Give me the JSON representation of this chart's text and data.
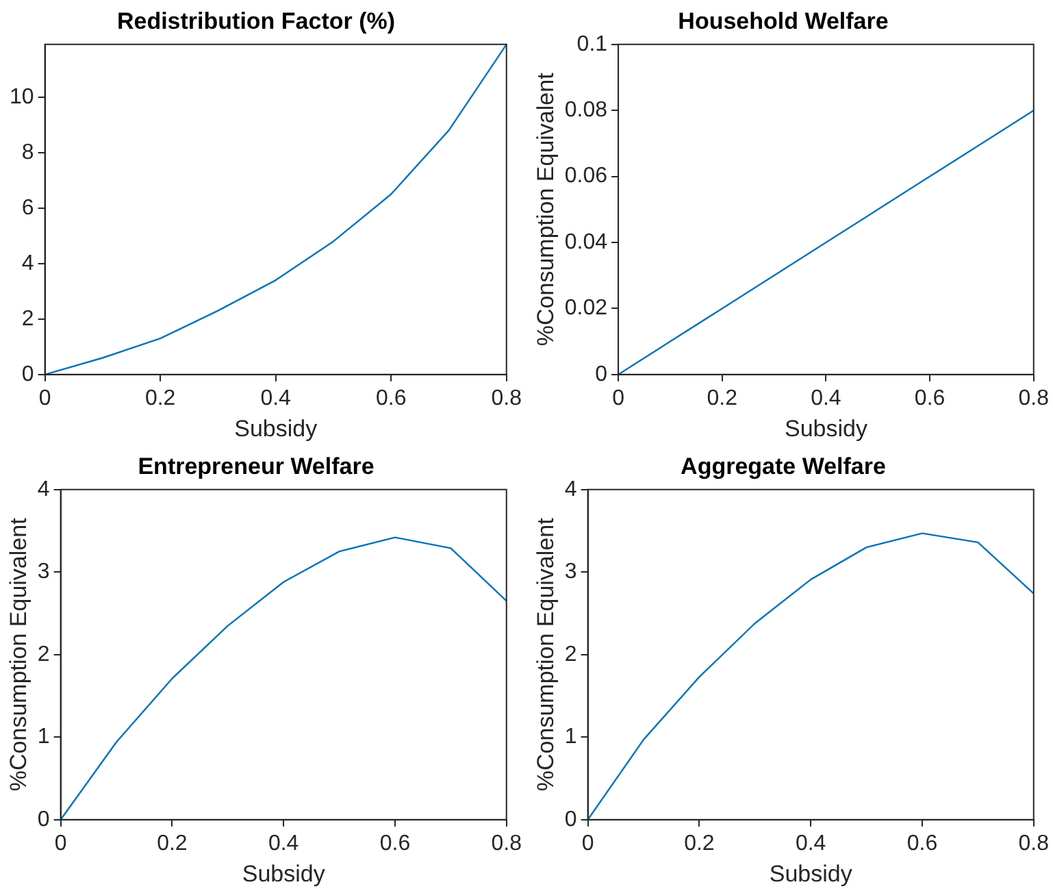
{
  "chart_data": [
    {
      "type": "line",
      "title": "Redistribution Factor (%)",
      "xlabel": "Subsidy",
      "x": [
        0,
        0.1,
        0.2,
        0.3,
        0.4,
        0.5,
        0.6,
        0.7,
        0.8
      ],
      "series": [
        {
          "color": "#0072bd",
          "values": [
            0,
            0.6,
            1.3,
            2.3,
            3.4,
            4.8,
            6.5,
            8.8,
            11.9
          ]
        }
      ],
      "xlim": [
        0,
        0.8
      ],
      "xticks": [
        0,
        0.2,
        0.4,
        0.6,
        0.8
      ],
      "ylim": [
        0,
        11.9
      ],
      "yticks": [
        0,
        2,
        4,
        6,
        8,
        10
      ],
      "grid": false,
      "legend": false,
      "marker": "none"
    },
    {
      "type": "line",
      "title": "Household Welfare",
      "xlabel": "Subsidy",
      "ylabel": "%Consumption Equivalent",
      "x": [
        0,
        0.1,
        0.2,
        0.3,
        0.4,
        0.5,
        0.6,
        0.7,
        0.8
      ],
      "series": [
        {
          "color": "#0072bd",
          "values": [
            0,
            0.01,
            0.02,
            0.03,
            0.04,
            0.05,
            0.06,
            0.07,
            0.08
          ]
        }
      ],
      "xlim": [
        0,
        0.8
      ],
      "xticks": [
        0,
        0.2,
        0.4,
        0.6,
        0.8
      ],
      "ylim": [
        0,
        0.1
      ],
      "yticks": [
        0,
        0.02,
        0.04,
        0.06,
        0.08,
        0.1
      ],
      "grid": false,
      "legend": false,
      "marker": "none"
    },
    {
      "type": "line",
      "title": "Entrepreneur Welfare",
      "xlabel": "Subsidy",
      "ylabel": "%Consumption Equivalent",
      "x": [
        0,
        0.1,
        0.2,
        0.3,
        0.4,
        0.5,
        0.6,
        0.7,
        0.8
      ],
      "series": [
        {
          "color": "#0072bd",
          "values": [
            0,
            0.94,
            1.71,
            2.35,
            2.88,
            3.25,
            3.42,
            3.29,
            2.65
          ]
        }
      ],
      "xlim": [
        0,
        0.8
      ],
      "xticks": [
        0,
        0.2,
        0.4,
        0.6,
        0.8
      ],
      "ylim": [
        0,
        4
      ],
      "yticks": [
        0,
        1,
        2,
        3,
        4
      ],
      "grid": false,
      "legend": false,
      "marker": "none"
    },
    {
      "type": "line",
      "title": "Aggregate Welfare",
      "xlabel": "Subsidy",
      "ylabel": "%Consumption Equivalent",
      "x": [
        0,
        0.1,
        0.2,
        0.3,
        0.4,
        0.5,
        0.6,
        0.7,
        0.8
      ],
      "series": [
        {
          "color": "#0072bd",
          "values": [
            0,
            0.97,
            1.73,
            2.38,
            2.91,
            3.3,
            3.47,
            3.36,
            2.74
          ]
        }
      ],
      "xlim": [
        0,
        0.8
      ],
      "xticks": [
        0,
        0.2,
        0.4,
        0.6,
        0.8
      ],
      "ylim": [
        0,
        4
      ],
      "yticks": [
        0,
        1,
        2,
        3,
        4
      ],
      "grid": false,
      "legend": false,
      "marker": "none"
    }
  ]
}
